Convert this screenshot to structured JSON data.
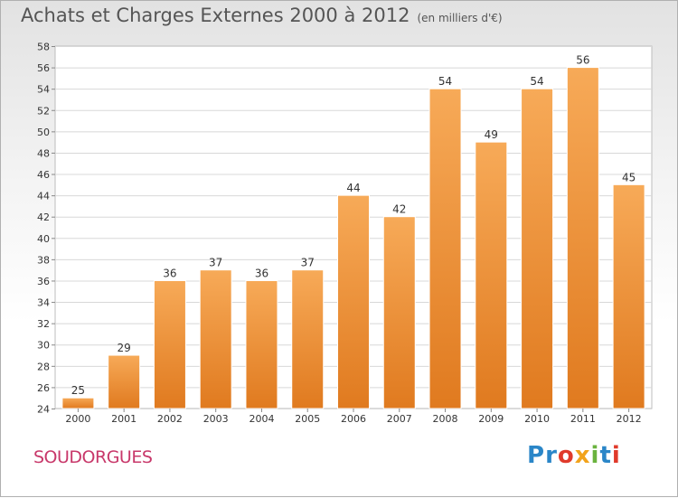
{
  "header": {
    "title": "Achats et Charges Externes 2000 à 2012",
    "subtitle": "(en milliers d'€)"
  },
  "footer": {
    "town": "SOUDORGUES",
    "logo": [
      "P",
      "r",
      "o",
      "x",
      "i",
      "t",
      "i"
    ],
    "logo_colors": [
      "#2a86c8",
      "#2a86c8",
      "#e03a2b",
      "#f2a31b",
      "#6ab33e",
      "#2a86c8",
      "#e03a2b"
    ]
  },
  "colors": {
    "bar_light": "#f7aa58",
    "bar_dark": "#e07a1f",
    "grid": "#d8d8d8",
    "axis_text": "#333333"
  },
  "chart_data": {
    "type": "bar",
    "categories": [
      "2000",
      "2001",
      "2002",
      "2003",
      "2004",
      "2005",
      "2006",
      "2007",
      "2008",
      "2009",
      "2010",
      "2011",
      "2012"
    ],
    "values": [
      25,
      29,
      36,
      37,
      36,
      37,
      44,
      42,
      54,
      49,
      54,
      56,
      45
    ],
    "ylim": [
      24,
      58
    ],
    "yticks": [
      24,
      26,
      28,
      30,
      32,
      34,
      36,
      38,
      40,
      42,
      44,
      46,
      48,
      50,
      52,
      54,
      56,
      58
    ],
    "grid": true,
    "data_labels": true
  }
}
